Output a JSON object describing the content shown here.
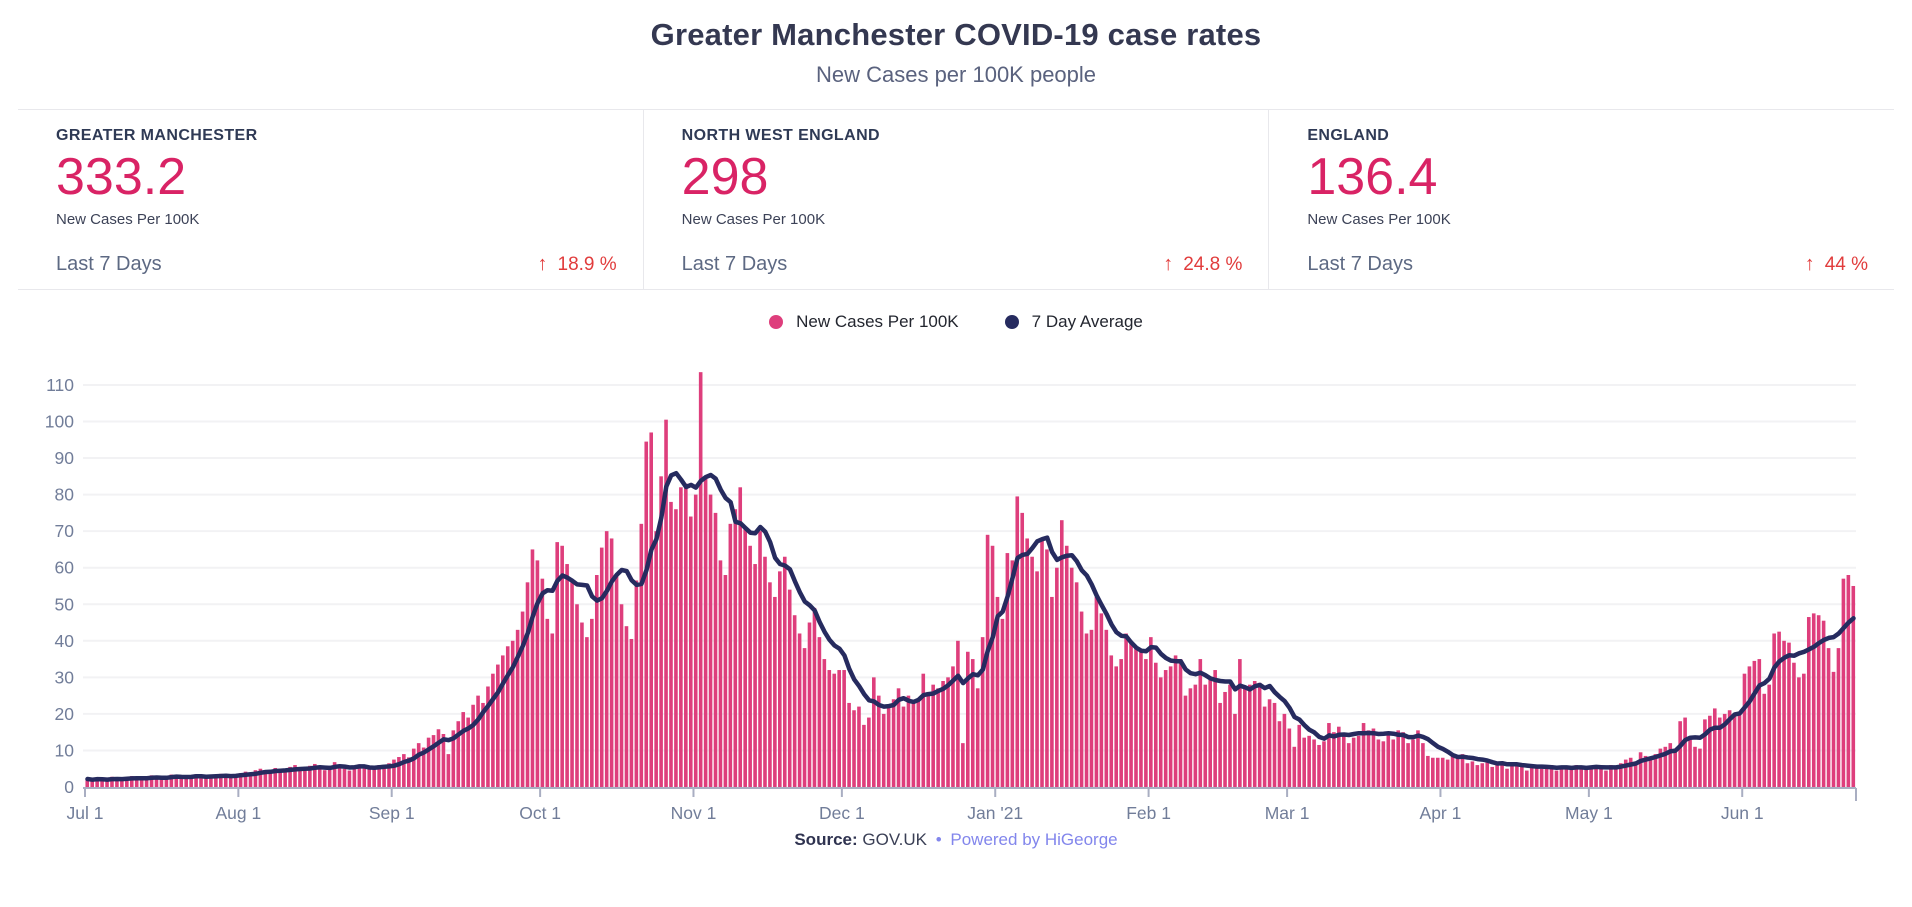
{
  "header": {
    "title": "Greater Manchester COVID-19 case rates",
    "subtitle": "New Cases per 100K people"
  },
  "stats": [
    {
      "region": "GREATER MANCHESTER",
      "value": "333.2",
      "unit": "New Cases Per 100K",
      "period": "Last 7 Days",
      "change": "18.9 %",
      "direction": "up"
    },
    {
      "region": "NORTH WEST ENGLAND",
      "value": "298",
      "unit": "New Cases Per 100K",
      "period": "Last 7 Days",
      "change": "24.8 %",
      "direction": "up"
    },
    {
      "region": "ENGLAND",
      "value": "136.4",
      "unit": "New Cases Per 100K",
      "period": "Last 7 Days",
      "change": "44 %",
      "direction": "up"
    }
  ],
  "icons": {
    "up_arrow": "↑"
  },
  "legend": [
    {
      "label": "New Cases Per 100K",
      "color": "#de3e7c"
    },
    {
      "label": "7 Day Average",
      "color": "#262b5f"
    }
  ],
  "footer": {
    "source_label": "Source:",
    "source_value": "GOV.UK",
    "separator": "•",
    "credit": "Powered by HiGeorge"
  },
  "colors": {
    "accent_pink": "#d92365",
    "bar_pink": "#de3e7c",
    "line_navy": "#262b5f",
    "change_red": "#e13c3c",
    "axis_text": "#717d99",
    "gridline": "#f2f2f4",
    "axis_line": "#a9aec2",
    "title_text": "#343851",
    "link_purple": "#8286ec"
  },
  "chart_data": {
    "type": "bar",
    "title": "Greater Manchester COVID-19 case rates",
    "xlabel": "",
    "ylabel": "New cases per 100K",
    "x_unit": "day",
    "x_start": "Jul 1",
    "ylim": [
      0,
      115
    ],
    "y_ticks": [
      0,
      10,
      20,
      30,
      40,
      50,
      60,
      70,
      80,
      90,
      100,
      110
    ],
    "x_ticks": [
      {
        "label": "Jul 1",
        "day": 0
      },
      {
        "label": "Aug 1",
        "day": 31
      },
      {
        "label": "Sep 1",
        "day": 62
      },
      {
        "label": "Oct 1",
        "day": 92
      },
      {
        "label": "Nov 1",
        "day": 123
      },
      {
        "label": "Dec 1",
        "day": 153
      },
      {
        "label": "Jan '21",
        "day": 184
      },
      {
        "label": "Feb 1",
        "day": 215
      },
      {
        "label": "Mar 1",
        "day": 243
      },
      {
        "label": "Apr 1",
        "day": 274
      },
      {
        "label": "May 1",
        "day": 304
      },
      {
        "label": "Jun 1",
        "day": 335
      }
    ],
    "legend_position": "top-center",
    "grid": true,
    "series": [
      {
        "name": "New Cases Per 100K",
        "type": "bar",
        "color": "#de3e7c",
        "values": [
          2.2,
          1.8,
          2.5,
          2.0,
          1.6,
          2.8,
          2.4,
          2.0,
          2.6,
          3.0,
          2.2,
          1.8,
          2.9,
          3.2,
          2.5,
          2.1,
          3.0,
          3.4,
          2.8,
          2.3,
          3.1,
          2.6,
          3.5,
          3.0,
          2.4,
          3.2,
          2.8,
          3.6,
          3.1,
          2.7,
          3.4,
          3.8,
          4.2,
          3.5,
          4.6,
          5.0,
          4.2,
          3.9,
          5.2,
          4.8,
          4.1,
          5.5,
          6.0,
          4.9,
          4.4,
          5.8,
          6.3,
          5.1,
          4.6,
          5.4,
          6.8,
          5.9,
          5.0,
          4.5,
          5.7,
          6.2,
          5.3,
          4.8,
          5.5,
          6.0,
          5.2,
          6.5,
          7.5,
          8.2,
          9.0,
          8.1,
          10.5,
          12.0,
          10.8,
          13.5,
          14.2,
          15.8,
          14.5,
          9.0,
          15.5,
          18.0,
          20.5,
          19.0,
          22.5,
          25.0,
          23.0,
          27.5,
          31.0,
          33.5,
          36.0,
          38.5,
          40.0,
          43.0,
          48.0,
          56.0,
          65.0,
          62.0,
          57.0,
          46.0,
          42.0,
          67.0,
          66.0,
          61.0,
          56.0,
          50.0,
          45.0,
          41.0,
          46.0,
          58.0,
          65.5,
          70.0,
          68.0,
          58.0,
          50.0,
          44.0,
          40.5,
          56.5,
          72.0,
          94.5,
          97.0,
          70.0,
          85.0,
          100.5,
          78.0,
          76.0,
          82.0,
          83.0,
          74.0,
          80.0,
          113.5,
          85.0,
          80.0,
          75.0,
          62.0,
          58.0,
          72.0,
          76.0,
          82.0,
          71.0,
          66.0,
          61.0,
          70.0,
          63.0,
          56.0,
          52.0,
          59.0,
          63.0,
          54.0,
          47.0,
          42.0,
          38.0,
          45.0,
          49.0,
          41.0,
          35.0,
          32.0,
          31.0,
          32.0,
          32.0,
          23.0,
          21.0,
          22.0,
          17.0,
          19.0,
          30.0,
          25.0,
          20.0,
          22.0,
          24.0,
          27.0,
          22.0,
          25.0,
          23.0,
          24.0,
          31.0,
          26.0,
          28.0,
          27.0,
          29.0,
          30.0,
          33.0,
          40.0,
          12.0,
          37.0,
          35.0,
          27.0,
          41.0,
          69.0,
          66.0,
          52.0,
          46.0,
          64.0,
          62.0,
          79.5,
          75.0,
          68.0,
          63.0,
          59.0,
          68.0,
          65.0,
          52.0,
          60.0,
          73.0,
          66.0,
          60.0,
          56.0,
          48.0,
          42.0,
          43.0,
          52.0,
          47.5,
          43.0,
          36.0,
          33.0,
          35.0,
          42.0,
          40.0,
          38.0,
          37.0,
          35.0,
          41.0,
          34.0,
          30.0,
          32.0,
          33.0,
          36.0,
          35.0,
          25.0,
          27.0,
          28.0,
          35.0,
          28.0,
          30.0,
          32.0,
          23.0,
          26.0,
          28.0,
          20.0,
          35.0,
          27.0,
          28.0,
          29.0,
          28.5,
          22.0,
          24.0,
          23.0,
          18.0,
          20.0,
          16.0,
          11.0,
          17.0,
          13.5,
          14.0,
          13.0,
          11.5,
          12.5,
          17.5,
          15.0,
          16.5,
          14.5,
          12.0,
          13.5,
          14.0,
          17.5,
          15.5,
          16.0,
          13.0,
          12.5,
          14.5,
          13.0,
          15.5,
          15.0,
          12.0,
          13.0,
          15.5,
          12.0,
          8.5,
          8.0,
          8.0,
          8.0,
          7.5,
          9.0,
          8.5,
          9.0,
          6.5,
          7.0,
          6.0,
          6.5,
          7.0,
          5.5,
          6.5,
          7.0,
          5.0,
          6.0,
          6.5,
          5.5,
          4.5,
          5.5,
          6.0,
          5.0,
          5.5,
          6.0,
          4.5,
          5.0,
          5.5,
          5.0,
          6.0,
          5.5,
          5.0,
          5.5,
          6.0,
          5.0,
          4.5,
          6.0,
          5.5,
          6.5,
          7.5,
          8.0,
          7.0,
          9.5,
          8.5,
          8.0,
          9.0,
          10.5,
          11.0,
          12.0,
          10.5,
          18.0,
          19.0,
          13.5,
          11.0,
          10.5,
          18.5,
          19.5,
          21.5,
          19.0,
          20.0,
          21.0,
          19.5,
          20.5,
          31.0,
          33.0,
          34.5,
          35.0,
          25.5,
          28.0,
          42.0,
          42.5,
          40.0,
          39.5,
          34.0,
          30.0,
          31.0,
          46.5,
          47.5,
          47.0,
          45.5,
          38.0,
          31.5,
          38.0,
          57.0,
          58.0,
          55.0
        ]
      },
      {
        "name": "7 Day Average",
        "type": "line",
        "color": "#262b5f",
        "derivation": "7-day trailing mean of the bar series values"
      }
    ]
  }
}
